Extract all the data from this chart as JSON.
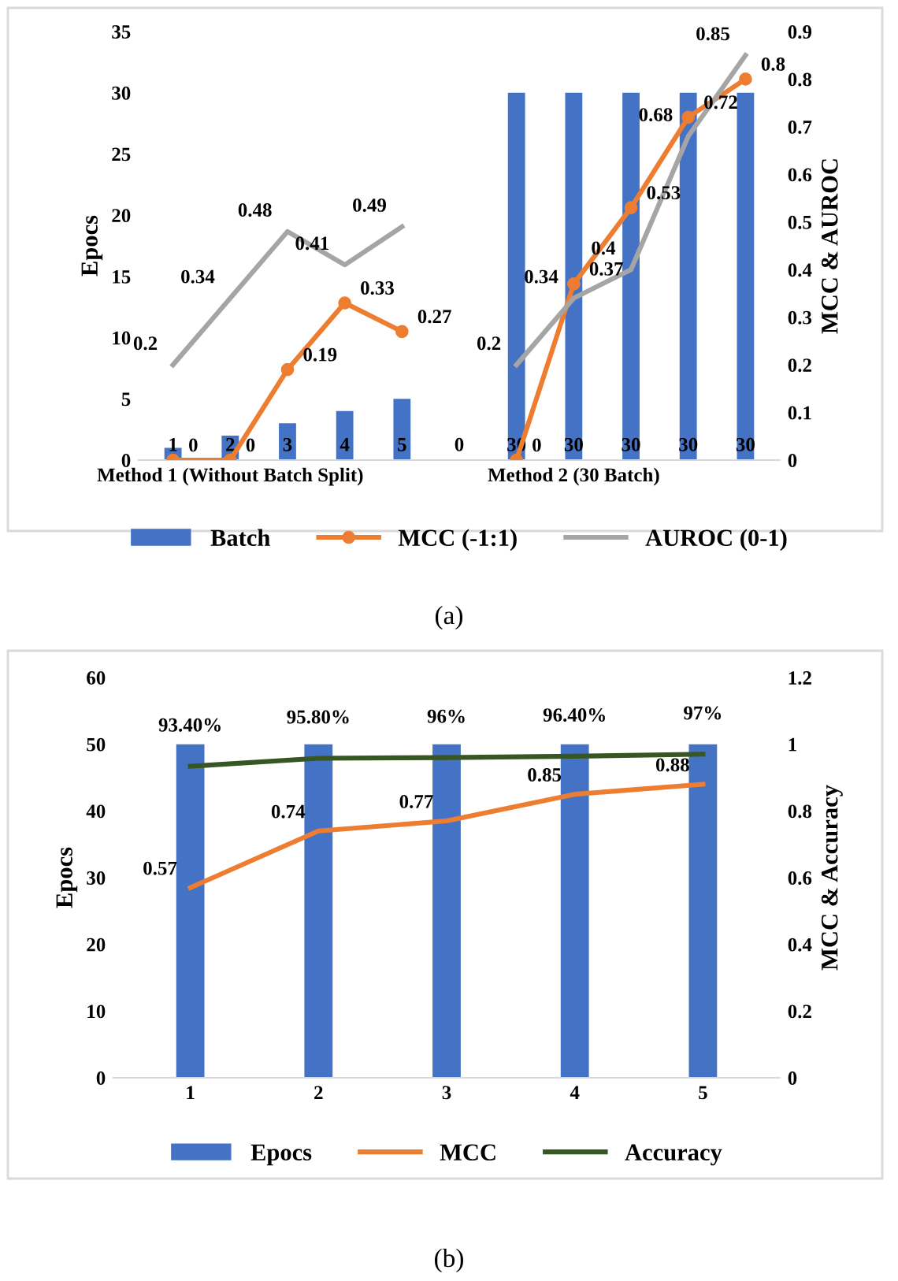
{
  "chart_data": [
    {
      "type": "bar",
      "categories": [
        null,
        "Method 1 (Without Batch Split)",
        null,
        null,
        null,
        null,
        null,
        "Method 2 (30 Batch)",
        null,
        null,
        null
      ],
      "ylabel": "Epocs",
      "y2label": "MCC & AUROC",
      "series": [
        {
          "name": "Batch",
          "type": "bar",
          "color": "#4472c4",
          "values": [
            1,
            2,
            3,
            4,
            5,
            0,
            30,
            30,
            30,
            30,
            30
          ]
        },
        {
          "name": "MCC (-1:1)",
          "type": "line",
          "axis": "y2",
          "marker": "circle",
          "color": "#ed7d31",
          "values": [
            0,
            0,
            0.19,
            0.33,
            0.27,
            null,
            0,
            0.37,
            0.53,
            0.72,
            0.8
          ]
        },
        {
          "name": "AUROC (0-1)",
          "type": "line",
          "axis": "y2",
          "marker": "none",
          "color": "#a5a5a5",
          "values": [
            0.2,
            0.34,
            0.48,
            0.41,
            0.49,
            null,
            0.2,
            0.34,
            0.4,
            0.68,
            0.85
          ]
        }
      ],
      "ylim": [
        0,
        35
      ],
      "yticks": [
        0,
        5,
        10,
        15,
        20,
        25,
        30,
        35
      ],
      "y2lim": [
        0,
        0.9
      ],
      "y2ticks": [
        0,
        0.1,
        0.2,
        0.3,
        0.4,
        0.5,
        0.6,
        0.7,
        0.8,
        0.9
      ],
      "data_labels": true,
      "legend": "bottom",
      "grid": false,
      "line_style": "solid",
      "annotations": [
        "(a)"
      ]
    },
    {
      "type": "bar",
      "categories": [
        "1",
        "2",
        "3",
        "4",
        "5"
      ],
      "ylabel": "Epocs",
      "y2label": "MCC & Accuracy",
      "series": [
        {
          "name": "Epocs",
          "type": "bar",
          "color": "#4472c4",
          "values": [
            50,
            50,
            50,
            50,
            50
          ]
        },
        {
          "name": "MCC",
          "type": "line",
          "axis": "y2",
          "marker": "none",
          "color": "#ed7d31",
          "values": [
            0.57,
            0.74,
            0.77,
            0.85,
            0.88
          ],
          "value_labels": [
            "0.57",
            "0.74",
            "0.77",
            "0.85",
            "0.88"
          ]
        },
        {
          "name": "Accuracy",
          "type": "line",
          "axis": "y2",
          "marker": "none",
          "color": "#375623",
          "values": [
            0.934,
            0.958,
            0.96,
            0.964,
            0.97
          ],
          "value_labels": [
            "93.40%",
            "95.80%",
            "96%",
            "96.40%",
            "97%"
          ]
        }
      ],
      "ylim": [
        0,
        60
      ],
      "yticks": [
        0,
        10,
        20,
        30,
        40,
        50,
        60
      ],
      "y2lim": [
        0,
        1.2
      ],
      "y2ticks": [
        0,
        0.2,
        0.4,
        0.6,
        0.8,
        1,
        1.2
      ],
      "legend": "bottom",
      "grid": false,
      "line_style": "solid",
      "annotations": [
        "(b)"
      ]
    }
  ]
}
